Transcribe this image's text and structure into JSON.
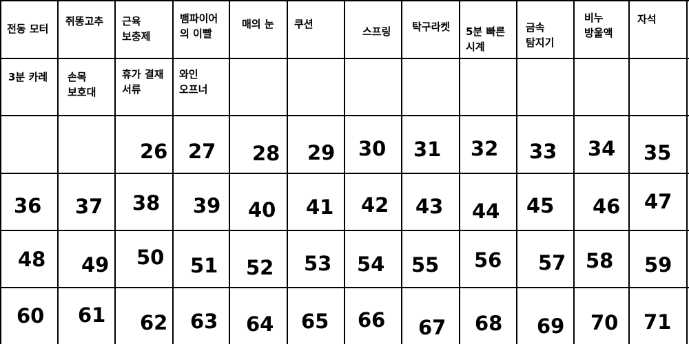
{
  "header_labels_row1": [
    "전동 모터",
    "쥐똥고추",
    "근육\n보충제",
    "뱀파이어\n의 이빨",
    "매의 눈",
    "쿠션",
    "스프링",
    "탁구라켓",
    "5분 빠른\n시계",
    "금속\n탐지기",
    "비누\n방울액",
    "자석"
  ],
  "header_labels_row2": [
    "3분 카레",
    "손목\n보호대",
    "휴가 결재\n서류",
    "와인\n오프너"
  ],
  "numbers": {
    "row1": [
      "26",
      "27",
      "28",
      "29",
      "30",
      "31",
      "32",
      "33",
      "34",
      "35"
    ],
    "row2": [
      "36",
      "37",
      "38",
      "39",
      "40",
      "41",
      "42",
      "43",
      "44",
      "45",
      "46",
      "47"
    ],
    "row3": [
      "48",
      "49",
      "50",
      "51",
      "52",
      "53",
      "54",
      "55",
      "56",
      "57",
      "58",
      "59"
    ],
    "row4": [
      "60",
      "61",
      "62",
      "63",
      "64",
      "65",
      "66",
      "67",
      "68",
      "69",
      "70",
      "71"
    ]
  }
}
